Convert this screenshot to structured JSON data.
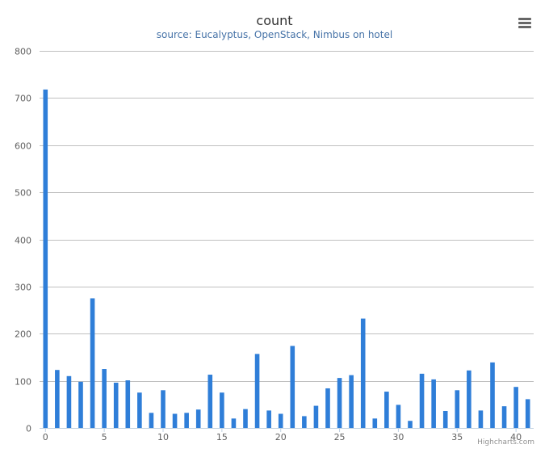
{
  "chart_data": {
    "type": "bar",
    "title": "count",
    "subtitle": "source: Eucalyptus, OpenStack, Nimbus on hotel",
    "xlabel": "",
    "ylabel": "",
    "ylim": [
      0,
      800
    ],
    "yticks": [
      0,
      100,
      200,
      300,
      400,
      500,
      600,
      700,
      800
    ],
    "xlim": [
      -0.5,
      41.5
    ],
    "xticks": [
      0,
      5,
      10,
      15,
      20,
      25,
      30,
      35,
      40
    ],
    "grid": true,
    "legend": "none",
    "color": "#2f7ed8",
    "categories": [
      0,
      1,
      2,
      3,
      4,
      5,
      6,
      7,
      8,
      9,
      10,
      11,
      12,
      13,
      14,
      15,
      16,
      17,
      18,
      19,
      20,
      21,
      22,
      23,
      24,
      25,
      26,
      27,
      28,
      29,
      30,
      31,
      32,
      33,
      34,
      35,
      36,
      37,
      38,
      39,
      40,
      41
    ],
    "values": [
      718,
      123,
      110,
      98,
      275,
      125,
      96,
      101,
      75,
      32,
      80,
      30,
      32,
      39,
      113,
      75,
      20,
      40,
      157,
      37,
      30,
      174,
      25,
      47,
      84,
      106,
      112,
      232,
      20,
      77,
      49,
      15,
      115,
      103,
      36,
      80,
      122,
      37,
      139,
      46,
      87,
      61
    ]
  },
  "credits": "Highcharts.com",
  "menu_icon": "hamburger-menu-icon"
}
